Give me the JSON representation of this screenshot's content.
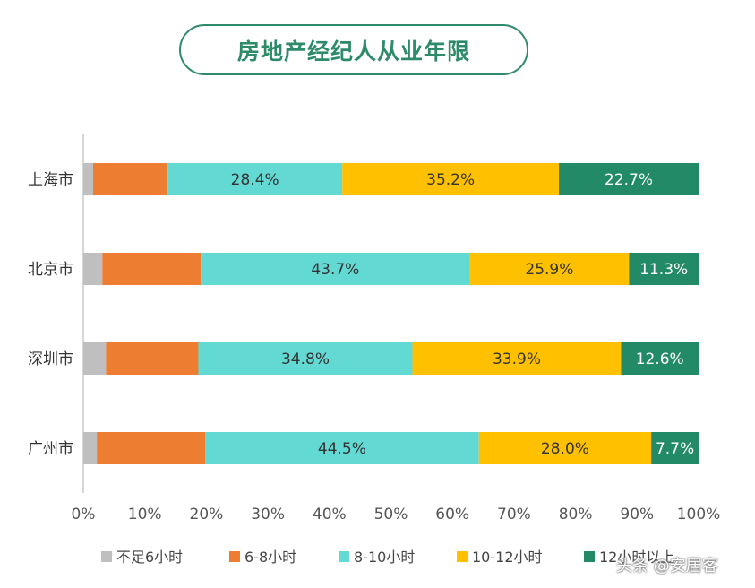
{
  "watermark": "头条 @安居客",
  "chart_data": {
    "type": "bar",
    "orientation": "horizontal",
    "stacked": true,
    "normalized": true,
    "title": "房地产经纪人从业年限",
    "categories": [
      "上海市",
      "北京市",
      "深圳市",
      "广州市"
    ],
    "xlim": [
      0,
      100
    ],
    "x_ticks": [
      "0%",
      "10%",
      "20%",
      "30%",
      "40%",
      "50%",
      "60%",
      "70%",
      "80%",
      "90%",
      "100%"
    ],
    "legend_position": "bottom",
    "grid": false,
    "series": [
      {
        "name": "不足6小时",
        "color": "#bfbfbf",
        "values": [
          1.6,
          3.1,
          3.7,
          2.2
        ],
        "labels": [
          "",
          "",
          "",
          ""
        ]
      },
      {
        "name": "6-8小时",
        "color": "#ed7d31",
        "values": [
          12.1,
          16.0,
          15.0,
          17.6
        ],
        "labels": [
          "",
          "",
          "",
          ""
        ]
      },
      {
        "name": "8-10小时",
        "color": "#63d9d4",
        "values": [
          28.4,
          43.7,
          34.8,
          44.5
        ],
        "labels": [
          "28.4%",
          "43.7%",
          "34.8%",
          "44.5%"
        ]
      },
      {
        "name": "10-12小时",
        "color": "#ffc000",
        "values": [
          35.2,
          25.9,
          33.9,
          28.0
        ],
        "labels": [
          "35.2%",
          "25.9%",
          "33.9%",
          "28.0%"
        ]
      },
      {
        "name": "12小时以上",
        "color": "#238a67",
        "values": [
          22.7,
          11.3,
          12.6,
          7.7
        ],
        "labels": [
          "22.7%",
          "11.3%",
          "12.6%",
          "7.7%"
        ]
      }
    ]
  }
}
